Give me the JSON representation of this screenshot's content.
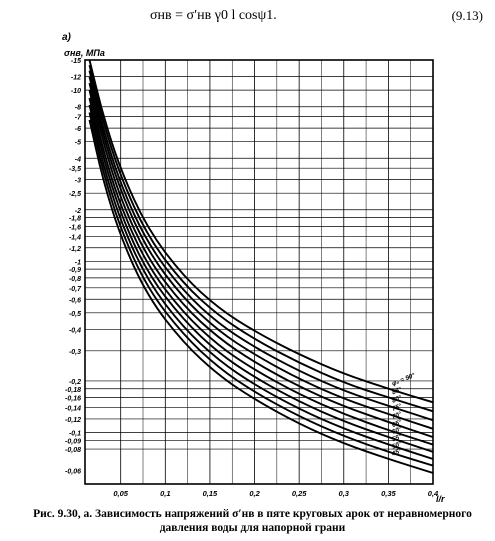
{
  "formula": {
    "text": "σнв = σ′нв γ0 l cosψ1.",
    "number": "(9.13)"
  },
  "caption": "Рис. 9.30, а. Зависимость напряжений σ′нв в пяте круговых арок от неравномерного давления воды для напорной грани",
  "chart_data": {
    "type": "line",
    "panel_label": "а)",
    "ylabel": "σнв, МПа",
    "xlabel": "l/r",
    "x_ticks": [
      "0,05",
      "0,1",
      "0,15",
      "0,2",
      "0,25",
      "0,3",
      "0,35",
      "0,4"
    ],
    "x_tick_values": [
      0.05,
      0.1,
      0.15,
      0.2,
      0.25,
      0.3,
      0.35,
      0.4
    ],
    "xlim": [
      0.01,
      0.4
    ],
    "y_scale": "log",
    "ylim": [
      0.05,
      15
    ],
    "y_ticks": [
      "-15",
      "-12",
      "-10",
      "-8",
      "-7",
      "-6",
      "-5",
      "-4",
      "-3,5",
      "-3",
      "-2,5",
      "-2",
      "-1,8",
      "-1,6",
      "-1,4",
      "-1,2",
      "-1",
      "-0,9",
      "-0,8",
      "-0,7",
      "-0,6",
      "-0,5",
      "-0,4",
      "-0,3",
      "-0,2",
      "-0,18",
      "-0,16",
      "-0,14",
      "-0,12",
      "-0,1",
      "-0,09",
      "-0,08"
    ],
    "y_tick_values": [
      15,
      12,
      10,
      8,
      7,
      6,
      5,
      4,
      3.5,
      3,
      2.5,
      2,
      1.8,
      1.6,
      1.4,
      1.2,
      1,
      0.9,
      0.8,
      0.7,
      0.6,
      0.5,
      0.4,
      0.3,
      0.2,
      0.18,
      0.16,
      0.14,
      0.12,
      0.1,
      0.09,
      0.08
    ],
    "bottom_tick": "-0,06",
    "bottom_tick_value": 0.06,
    "x_major_grid": [
      0.05,
      0.1,
      0.15,
      0.2,
      0.25,
      0.3,
      0.35,
      0.4
    ],
    "x_minor_grid": [
      0.075,
      0.125,
      0.175,
      0.225,
      0.275,
      0.325,
      0.375
    ],
    "grid": true,
    "curve_label_prefix": "φ₀ =",
    "series": [
      {
        "name": "90°",
        "x": [
          0.015,
          0.03,
          0.05,
          0.08,
          0.12,
          0.16,
          0.2,
          0.25,
          0.3,
          0.35,
          0.4
        ],
        "values": [
          15,
          7.2,
          3.4,
          1.55,
          0.82,
          0.53,
          0.39,
          0.285,
          0.22,
          0.18,
          0.15
        ]
      },
      {
        "name": "85°",
        "x": [
          0.015,
          0.03,
          0.05,
          0.08,
          0.12,
          0.16,
          0.2,
          0.25,
          0.3,
          0.35,
          0.4
        ],
        "values": [
          14,
          6.6,
          3.1,
          1.4,
          0.74,
          0.48,
          0.35,
          0.255,
          0.195,
          0.16,
          0.133
        ]
      },
      {
        "name": "80°",
        "x": [
          0.015,
          0.03,
          0.05,
          0.08,
          0.12,
          0.16,
          0.2,
          0.25,
          0.3,
          0.35,
          0.4
        ],
        "values": [
          13,
          6,
          2.8,
          1.27,
          0.67,
          0.43,
          0.315,
          0.228,
          0.175,
          0.143,
          0.118
        ]
      },
      {
        "name": "75°",
        "x": [
          0.015,
          0.03,
          0.05,
          0.08,
          0.12,
          0.16,
          0.2,
          0.25,
          0.3,
          0.35,
          0.4
        ],
        "values": [
          12,
          5.5,
          2.55,
          1.15,
          0.61,
          0.39,
          0.285,
          0.205,
          0.157,
          0.128,
          0.105
        ]
      },
      {
        "name": "70°",
        "x": [
          0.015,
          0.03,
          0.05,
          0.08,
          0.12,
          0.16,
          0.2,
          0.25,
          0.3,
          0.35,
          0.4
        ],
        "values": [
          11,
          5,
          2.3,
          1.04,
          0.55,
          0.355,
          0.257,
          0.185,
          0.142,
          0.115,
          0.094
        ]
      },
      {
        "name": "65°",
        "x": [
          0.015,
          0.03,
          0.05,
          0.08,
          0.12,
          0.16,
          0.2,
          0.25,
          0.3,
          0.35,
          0.4
        ],
        "values": [
          10,
          4.5,
          2.08,
          0.94,
          0.5,
          0.32,
          0.232,
          0.167,
          0.128,
          0.103,
          0.085
        ]
      },
      {
        "name": "60°",
        "x": [
          0.015,
          0.03,
          0.05,
          0.08,
          0.12,
          0.16,
          0.2,
          0.25,
          0.3,
          0.35,
          0.4
        ],
        "values": [
          9,
          4.1,
          1.88,
          0.85,
          0.455,
          0.29,
          0.21,
          0.151,
          0.116,
          0.094,
          0.077
        ]
      },
      {
        "name": "55°",
        "x": [
          0.015,
          0.03,
          0.05,
          0.08,
          0.12,
          0.16,
          0.2,
          0.25,
          0.3,
          0.35,
          0.4
        ],
        "values": [
          8.2,
          3.7,
          1.7,
          0.77,
          0.41,
          0.263,
          0.19,
          0.137,
          0.105,
          0.085,
          0.07
        ]
      },
      {
        "name": "50°",
        "x": [
          0.015,
          0.03,
          0.05,
          0.08,
          0.12,
          0.16,
          0.2,
          0.25,
          0.3,
          0.35,
          0.4
        ],
        "values": [
          7.4,
          3.35,
          1.53,
          0.695,
          0.372,
          0.238,
          0.172,
          0.124,
          0.095,
          0.077,
          0.064
        ]
      },
      {
        "name": "45°",
        "x": [
          0.015,
          0.03,
          0.05,
          0.08,
          0.12,
          0.16,
          0.2,
          0.25,
          0.3,
          0.35,
          0.4
        ],
        "values": [
          6.7,
          3,
          1.38,
          0.625,
          0.335,
          0.215,
          0.156,
          0.112,
          0.086,
          0.07,
          0.058
        ]
      }
    ]
  }
}
